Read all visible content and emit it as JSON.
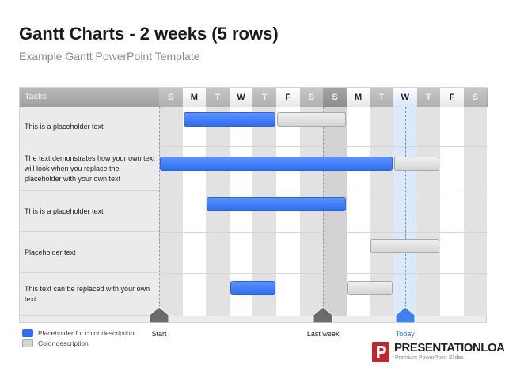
{
  "title": "Gantt Charts - 2 weeks (5 rows)",
  "subtitle": "Example Gantt PowerPoint Template",
  "header": {
    "tasks_label": "Tasks"
  },
  "days": [
    {
      "label": "S",
      "shade": "lt"
    },
    {
      "label": "M",
      "shade": "wd"
    },
    {
      "label": "T",
      "shade": "lt"
    },
    {
      "label": "W",
      "shade": "wd"
    },
    {
      "label": "T",
      "shade": "lt"
    },
    {
      "label": "F",
      "shade": "wd"
    },
    {
      "label": "S",
      "shade": "lt"
    },
    {
      "label": "S",
      "shade": "dk"
    },
    {
      "label": "M",
      "shade": "wd"
    },
    {
      "label": "T",
      "shade": "lt"
    },
    {
      "label": "W",
      "shade": "today"
    },
    {
      "label": "T",
      "shade": "lt"
    },
    {
      "label": "F",
      "shade": "wd"
    },
    {
      "label": "S",
      "shade": "lt"
    }
  ],
  "tasks": [
    {
      "label": "This is a placeholder text",
      "bars": [
        {
          "kind": "blue",
          "start": 1,
          "end": 5
        },
        {
          "kind": "gray",
          "start": 5,
          "end": 8
        }
      ]
    },
    {
      "label": "The text demonstrates how your own text will look when you replace the placeholder with your own text",
      "bars": [
        {
          "kind": "blue",
          "start": 0,
          "end": 10
        },
        {
          "kind": "gray",
          "start": 10,
          "end": 12
        }
      ]
    },
    {
      "label": "This is a placeholder text",
      "bars": [
        {
          "kind": "blue",
          "start": 2,
          "end": 8
        }
      ]
    },
    {
      "label": "Placeholder text",
      "bars": [
        {
          "kind": "gray",
          "start": 9,
          "end": 12
        }
      ]
    },
    {
      "label": "This text can be replaced with your own text",
      "bars": [
        {
          "kind": "blue",
          "start": 3,
          "end": 5
        },
        {
          "kind": "gray",
          "start": 8,
          "end": 10
        }
      ]
    }
  ],
  "milestones": [
    {
      "label": "Start",
      "day": 0,
      "color": "#6b6b6b",
      "kind": "normal"
    },
    {
      "label": "Last week",
      "day": 7,
      "color": "#6b6b6b",
      "kind": "normal"
    },
    {
      "label": "Today",
      "day": 10.5,
      "color": "#3f7ff0",
      "kind": "today"
    }
  ],
  "legend": [
    {
      "kind": "blue",
      "label": "Placeholder  for color description"
    },
    {
      "kind": "gray",
      "label": "Color description"
    }
  ],
  "logo": {
    "brand_bold": "PRESENTATION",
    "brand_light": "LOAD",
    "registered": "®",
    "tagline": "Premium PowerPoint Slides"
  },
  "colors": {
    "accent_blue": "#2f6ef0",
    "bar_gray": "#d4d4d4",
    "logo_red": "#c0262d"
  }
}
